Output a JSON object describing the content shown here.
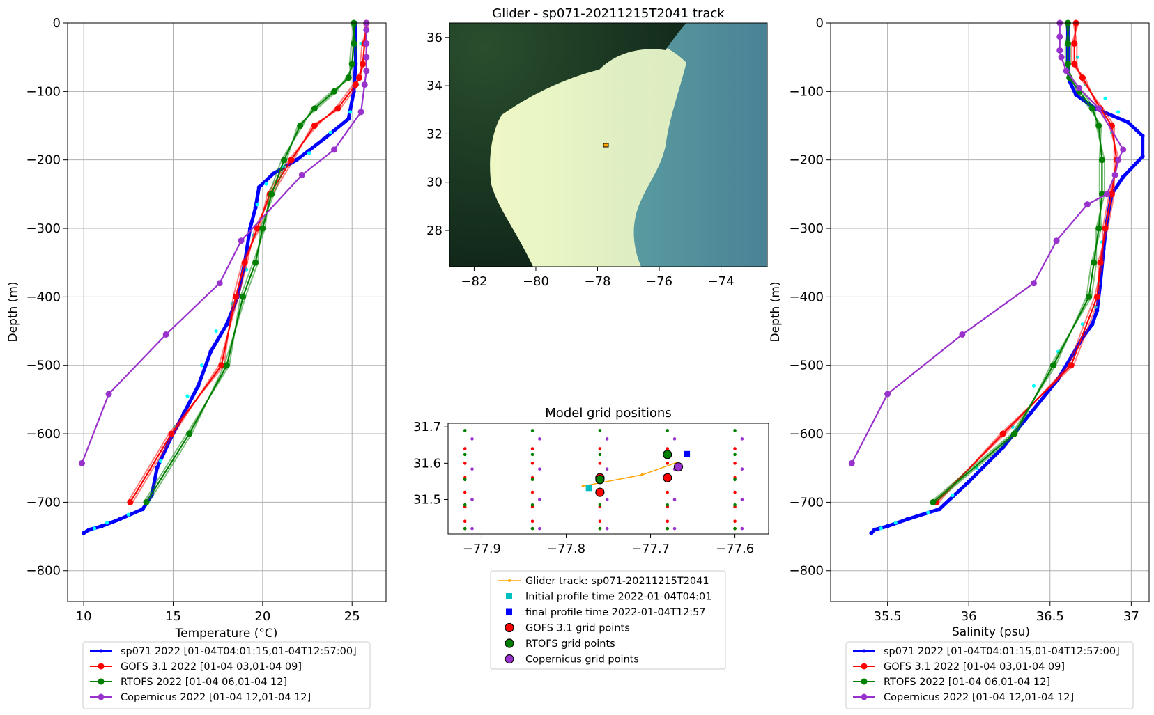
{
  "left_panel": {
    "xlabel": "Temperature (°C)",
    "ylabel": "Depth (m)",
    "legend": [
      {
        "label": "sp071 2022 [01-04T04:01:15,01-04T12:57:00]",
        "color": "#0000ff"
      },
      {
        "label": "GOFS 3.1 2022 [01-04 03,01-04 09]",
        "color": "#ff0000"
      },
      {
        "label": "RTOFS 2022 [01-04 06,01-04 12]",
        "color": "#008000"
      },
      {
        "label": "Copernicus 2022 [01-04 12,01-04 12]",
        "color": "#9932cc"
      }
    ]
  },
  "right_panel": {
    "xlabel": "Salinity (psu)",
    "ylabel": "Depth (m)",
    "legend": [
      {
        "label": "sp071 2022 [01-04T04:01:15,01-04T12:57:00]",
        "color": "#0000ff"
      },
      {
        "label": "GOFS 3.1 2022 [01-04 03,01-04 09]",
        "color": "#ff0000"
      },
      {
        "label": "RTOFS 2022 [01-04 06,01-04 12]",
        "color": "#008000"
      },
      {
        "label": "Copernicus 2022 [01-04 12,01-04 12]",
        "color": "#9932cc"
      }
    ]
  },
  "map_panel": {
    "title": "Glider - sp071-20211215T2041 track"
  },
  "grid_panel": {
    "title": "Model grid positions",
    "legend": [
      {
        "label": "Glider track: sp071-20211215T2041",
        "color": "#ffa500"
      },
      {
        "label": "Initial profile time 2022-01-04T04:01",
        "color": "#00bfbf"
      },
      {
        "label": "final profile time 2022-01-04T12:57",
        "color": "#0000ff"
      },
      {
        "label": "GOFS 3.1 grid points",
        "color": "#ff0000"
      },
      {
        "label": "RTOFS grid points",
        "color": "#008000"
      },
      {
        "label": "Copernicus grid points",
        "color": "#9932cc"
      }
    ]
  },
  "chart_data": [
    {
      "type": "line",
      "panel": "temperature",
      "xlabel": "Temperature (°C)",
      "ylabel": "Depth (m)",
      "xlim": [
        9.1,
        26.9
      ],
      "ylim": [
        -845,
        0
      ],
      "xticks": [
        10,
        15,
        20,
        25
      ],
      "yticks": [
        0,
        -100,
        -200,
        -300,
        -400,
        -500,
        -600,
        -700,
        -800
      ],
      "grid": true,
      "legend_position": "below",
      "series": [
        {
          "name": "sp071 2022 [01-04T04:01:15,01-04T12:57:00]",
          "color": "#0000ff",
          "x": [
            25.2,
            25.2,
            25.1,
            24.8,
            23.4,
            21.9,
            20.6,
            19.8,
            19.6,
            19.3,
            19.0,
            18.6,
            18.0,
            17.1,
            16.4,
            15.6,
            14.8,
            14.1,
            13.8,
            13.3,
            12.0,
            11.0,
            10.3,
            10.0
          ],
          "y": [
            0,
            -60,
            -100,
            -140,
            -170,
            -200,
            -220,
            -240,
            -270,
            -300,
            -350,
            -400,
            -440,
            -480,
            -530,
            -570,
            -610,
            -650,
            -690,
            -710,
            -725,
            -735,
            -740,
            -745
          ]
        },
        {
          "name": "sp071 spread",
          "color": "#00ffff",
          "x": [
            25.5,
            25.3,
            24.9,
            23.8,
            22.6,
            21.2,
            20.2,
            19.7,
            19.5,
            19.1,
            18.3,
            17.4,
            16.6,
            15.8,
            15.1,
            14.3,
            13.6,
            12.5,
            11.3,
            10.6
          ],
          "y": [
            -30,
            -90,
            -130,
            -160,
            -190,
            -210,
            -235,
            -265,
            -310,
            -360,
            -410,
            -450,
            -500,
            -545,
            -590,
            -640,
            -700,
            -718,
            -730,
            -738
          ]
        },
        {
          "name": "GOFS 3.1 2022 [01-04 03,01-04 09]",
          "color": "#ff0000",
          "x": [
            25.8,
            25.7,
            25.6,
            25.4,
            25.2,
            24.2,
            22.9,
            21.6,
            20.4,
            19.7,
            19.0,
            18.5,
            17.7,
            14.9,
            12.6
          ],
          "y": [
            0,
            -30,
            -60,
            -80,
            -90,
            -125,
            -150,
            -200,
            -250,
            -300,
            -350,
            -400,
            -500,
            -600,
            -700
          ]
        },
        {
          "name": "RTOFS 2022 [01-04 06,01-04 12]",
          "color": "#008000",
          "x": [
            25.1,
            25.1,
            25.0,
            24.8,
            24.0,
            22.9,
            22.1,
            21.2,
            20.5,
            20.0,
            19.6,
            18.9,
            18.0,
            15.9,
            13.5
          ],
          "y": [
            0,
            -30,
            -60,
            -80,
            -100,
            -125,
            -150,
            -200,
            -250,
            -300,
            -350,
            -400,
            -500,
            -600,
            -700
          ]
        },
        {
          "name": "Copernicus 2022 [01-04 12,01-04 12]",
          "color": "#9932cc",
          "x": [
            25.8,
            25.8,
            25.8,
            25.8,
            25.8,
            25.7,
            25.5,
            24.0,
            22.2,
            18.8,
            17.6,
            14.6,
            11.4,
            9.9
          ],
          "y": [
            0,
            -10,
            -30,
            -50,
            -70,
            -90,
            -130,
            -185,
            -222,
            -318,
            -380,
            -455,
            -542,
            -643
          ]
        }
      ]
    },
    {
      "type": "scatter",
      "panel": "map",
      "title": "Glider - sp071-20211215T2041 track",
      "xlim": [
        -82.8,
        -72.5
      ],
      "ylim": [
        26.5,
        36.6
      ],
      "xticks": [
        -82,
        -80,
        -78,
        -76,
        -74
      ],
      "yticks": [
        28,
        30,
        32,
        34,
        36
      ],
      "series": [
        {
          "name": "glider track",
          "color": "#ffa500",
          "x": [
            -77.78,
            -77.67
          ],
          "y": [
            31.55,
            31.6
          ]
        }
      ]
    },
    {
      "type": "scatter",
      "panel": "model grid",
      "title": "Model grid positions",
      "xlim": [
        -77.94,
        -77.56
      ],
      "ylim": [
        31.405,
        31.71
      ],
      "xticks": [
        -77.9,
        -77.8,
        -77.7,
        -77.6
      ],
      "yticks": [
        31.5,
        31.6,
        31.7
      ],
      "grid": false,
      "legend_position": "below",
      "series": [
        {
          "name": "Glider track: sp071-20211215T2041",
          "color": "#ffa500",
          "x": [
            -77.78,
            -77.71,
            -77.67
          ],
          "y": [
            31.537,
            31.568,
            31.601
          ]
        },
        {
          "name": "Initial profile time 2022-01-04T04:01",
          "color": "#00bfbf",
          "x": [
            -77.773
          ],
          "y": [
            31.532
          ]
        },
        {
          "name": "final profile time 2022-01-04T12:57",
          "color": "#0000ff",
          "x": [
            -77.657
          ],
          "y": [
            31.625
          ]
        },
        {
          "name": "GOFS 3.1 grid points",
          "color": "#ff0000",
          "x": [
            -77.76,
            -77.76,
            -77.68
          ],
          "y": [
            31.52,
            31.56,
            31.56
          ]
        },
        {
          "name": "RTOFS grid points",
          "color": "#008000",
          "x": [
            -77.76,
            -77.68
          ],
          "y": [
            31.555,
            31.624
          ]
        },
        {
          "name": "Copernicus grid points",
          "color": "#9932cc",
          "x": [
            -77.667
          ],
          "y": [
            31.59
          ]
        }
      ]
    },
    {
      "type": "line",
      "panel": "salinity",
      "xlabel": "Salinity (psu)",
      "ylabel": "Depth (m)",
      "xlim": [
        35.15,
        37.11
      ],
      "ylim": [
        -845,
        0
      ],
      "xticks": [
        35.5,
        36.0,
        36.5,
        37.0
      ],
      "yticks": [
        0,
        -100,
        -200,
        -300,
        -400,
        -500,
        -600,
        -700,
        -800
      ],
      "grid": true,
      "legend_position": "below",
      "series": [
        {
          "name": "sp071 2022 [01-04T04:01:15,01-04T12:57:00]",
          "color": "#0000ff",
          "x": [
            36.61,
            36.61,
            36.62,
            36.66,
            36.78,
            36.98,
            37.07,
            37.07,
            36.95,
            36.88,
            36.85,
            36.83,
            36.81,
            36.79,
            36.76,
            36.7,
            36.55,
            36.38,
            36.21,
            36.0,
            35.82,
            35.62,
            35.5,
            35.42,
            35.4
          ],
          "y": [
            0,
            -60,
            -85,
            -105,
            -125,
            -145,
            -165,
            -195,
            -225,
            -250,
            -290,
            -330,
            -380,
            -420,
            -440,
            -460,
            -520,
            -570,
            -620,
            -670,
            -710,
            -725,
            -735,
            -740,
            -745
          ]
        },
        {
          "name": "sp071 spread",
          "color": "#00ffff",
          "x": [
            36.67,
            36.72,
            36.84,
            36.92,
            36.88,
            36.84,
            36.82,
            36.8,
            36.78,
            36.7,
            36.55,
            36.4,
            36.27,
            36.05,
            35.9,
            35.75,
            35.55,
            35.46
          ],
          "y": [
            -50,
            -90,
            -110,
            -130,
            -160,
            -250,
            -320,
            -380,
            -415,
            -440,
            -480,
            -530,
            -590,
            -650,
            -690,
            -715,
            -730,
            -738
          ]
        },
        {
          "name": "GOFS 3.1 2022 [01-04 03,01-04 09]",
          "color": "#ff0000",
          "x": [
            36.66,
            36.65,
            36.65,
            36.7,
            36.81,
            36.88,
            36.91,
            36.88,
            36.84,
            36.81,
            36.79,
            36.63,
            36.21,
            35.8
          ],
          "y": [
            0,
            -30,
            -60,
            -80,
            -125,
            -150,
            -200,
            -250,
            -300,
            -350,
            -400,
            -500,
            -600,
            -700
          ]
        },
        {
          "name": "RTOFS 2022 [01-04 06,01-04 12]",
          "color": "#008000",
          "x": [
            36.61,
            36.61,
            36.61,
            36.62,
            36.68,
            36.76,
            36.8,
            36.82,
            36.82,
            36.8,
            36.77,
            36.74,
            36.52,
            36.28,
            35.78
          ],
          "y": [
            0,
            -30,
            -60,
            -80,
            -100,
            -125,
            -150,
            -200,
            -250,
            -300,
            -350,
            -400,
            -500,
            -600,
            -700
          ]
        },
        {
          "name": "Copernicus 2022 [01-04 12,01-04 12]",
          "color": "#9932cc",
          "x": [
            36.56,
            36.56,
            36.56,
            36.57,
            36.6,
            36.68,
            36.8,
            36.95,
            36.92,
            36.9,
            36.85,
            36.73,
            36.54,
            36.4,
            35.96,
            35.5,
            35.28
          ],
          "y": [
            0,
            -20,
            -40,
            -50,
            -70,
            -95,
            -125,
            -185,
            -200,
            -222,
            -250,
            -265,
            -318,
            -380,
            -455,
            -542,
            -643
          ]
        }
      ]
    }
  ]
}
